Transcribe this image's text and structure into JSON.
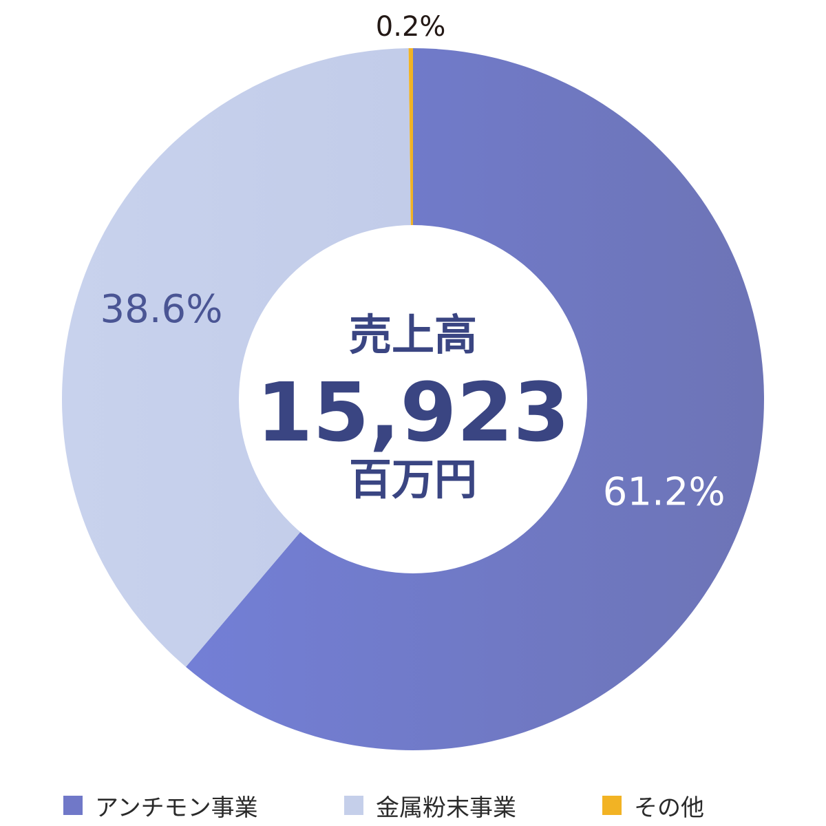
{
  "chart_data": {
    "type": "pie",
    "categories": [
      "アンチモン事業",
      "金属粉末事業",
      "その他"
    ],
    "values": [
      61.2,
      38.6,
      0.2
    ],
    "value_labels": [
      "61.2%",
      "38.6%",
      "0.2%"
    ],
    "colors": [
      "#7078c8",
      "#c5cfea",
      "#f2b324"
    ],
    "label_colors": [
      "#ffffff",
      "#4a5594",
      "#231815"
    ],
    "center": {
      "title": "売上高",
      "value": "15,923",
      "unit": "百万円"
    },
    "legend_position": "bottom"
  }
}
